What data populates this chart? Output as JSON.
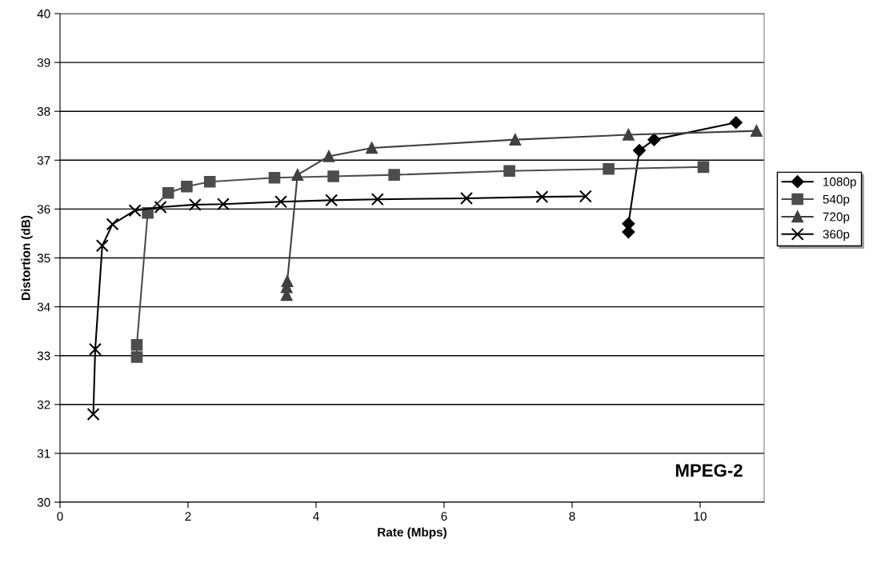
{
  "chart_data": {
    "type": "line",
    "xlabel": "Rate (Mbps)",
    "ylabel": "Distortion (dB)",
    "xlim": [
      0,
      11
    ],
    "xticks": [
      0,
      2,
      4,
      6,
      8,
      10
    ],
    "ylim": [
      30,
      40
    ],
    "yticks": [
      30,
      31,
      32,
      33,
      34,
      35,
      36,
      37,
      38,
      39,
      40
    ],
    "grid": "y",
    "legend": "right",
    "line_style": "solid",
    "annotations": [
      "MPEG-2"
    ],
    "series": [
      {
        "name": "1080p",
        "color": "#000000",
        "marker": "diamond",
        "x": [
          8.88,
          8.88,
          9.05,
          9.28,
          10.56
        ],
        "values": [
          35.53,
          35.7,
          37.2,
          37.42,
          37.77
        ]
      },
      {
        "name": "540p",
        "color": "#4d4d4d",
        "marker": "square",
        "x": [
          1.2,
          1.2,
          1.37,
          1.69,
          1.98,
          2.34,
          3.35,
          4.27,
          5.22,
          7.02,
          8.57,
          10.05
        ],
        "values": [
          32.97,
          33.22,
          35.92,
          36.33,
          36.46,
          36.56,
          36.64,
          36.67,
          36.7,
          36.78,
          36.82,
          36.86
        ]
      },
      {
        "name": "720p",
        "color": "#404040",
        "marker": "triangle",
        "x": [
          3.54,
          3.54,
          3.55,
          3.71,
          4.2,
          4.87,
          7.11,
          8.88,
          10.88
        ],
        "values": [
          34.24,
          34.4,
          34.52,
          36.7,
          37.08,
          37.25,
          37.42,
          37.52,
          37.6
        ]
      },
      {
        "name": "360p",
        "color": "#000000",
        "marker": "cross",
        "x": [
          0.52,
          0.55,
          0.66,
          0.82,
          1.17,
          1.57,
          2.11,
          2.55,
          3.45,
          4.24,
          4.96,
          6.35,
          7.53,
          8.21
        ],
        "values": [
          31.8,
          33.13,
          35.25,
          35.69,
          35.97,
          36.04,
          36.09,
          36.1,
          36.15,
          36.18,
          36.2,
          36.22,
          36.25,
          36.26
        ]
      }
    ]
  }
}
